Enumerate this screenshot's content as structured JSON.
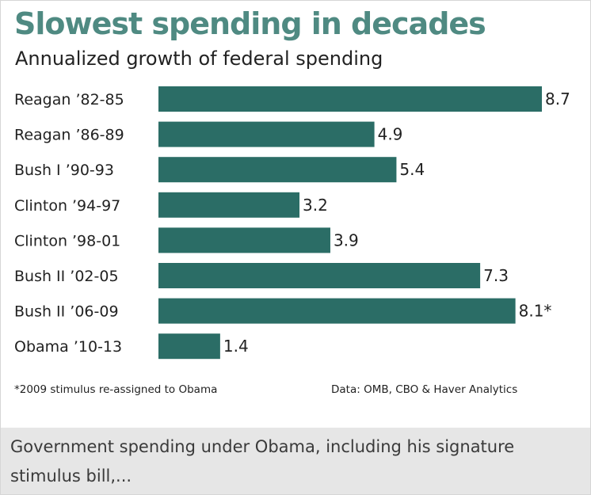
{
  "chart_data": {
    "type": "bar",
    "orientation": "horizontal",
    "title": "Slowest spending in decades",
    "subtitle": "Annualized growth of federal spending",
    "categories": [
      "Reagan ’82-85",
      "Reagan ’86-89",
      "Bush I ’90-93",
      "Clinton ’94-97",
      "Clinton ’98-01",
      "Bush II ’02-05",
      "Bush II ’06-09",
      "Obama ’10-13"
    ],
    "values": [
      8.7,
      4.9,
      5.4,
      3.2,
      3.9,
      7.3,
      8.1,
      1.4
    ],
    "data_labels": [
      "8.7",
      "4.9",
      "5.4",
      "3.2",
      "3.9",
      "7.3",
      "8.1*",
      "1.4"
    ],
    "xlim": [
      0,
      8.7
    ],
    "grid": false,
    "bar_color": "#2b6d66",
    "footnote": "*2009 stimulus re-assigned to Obama",
    "source": "Data: OMB, CBO & Haver Analytics"
  },
  "caption": "Government spending under Obama, including his signature stimulus bill,..."
}
